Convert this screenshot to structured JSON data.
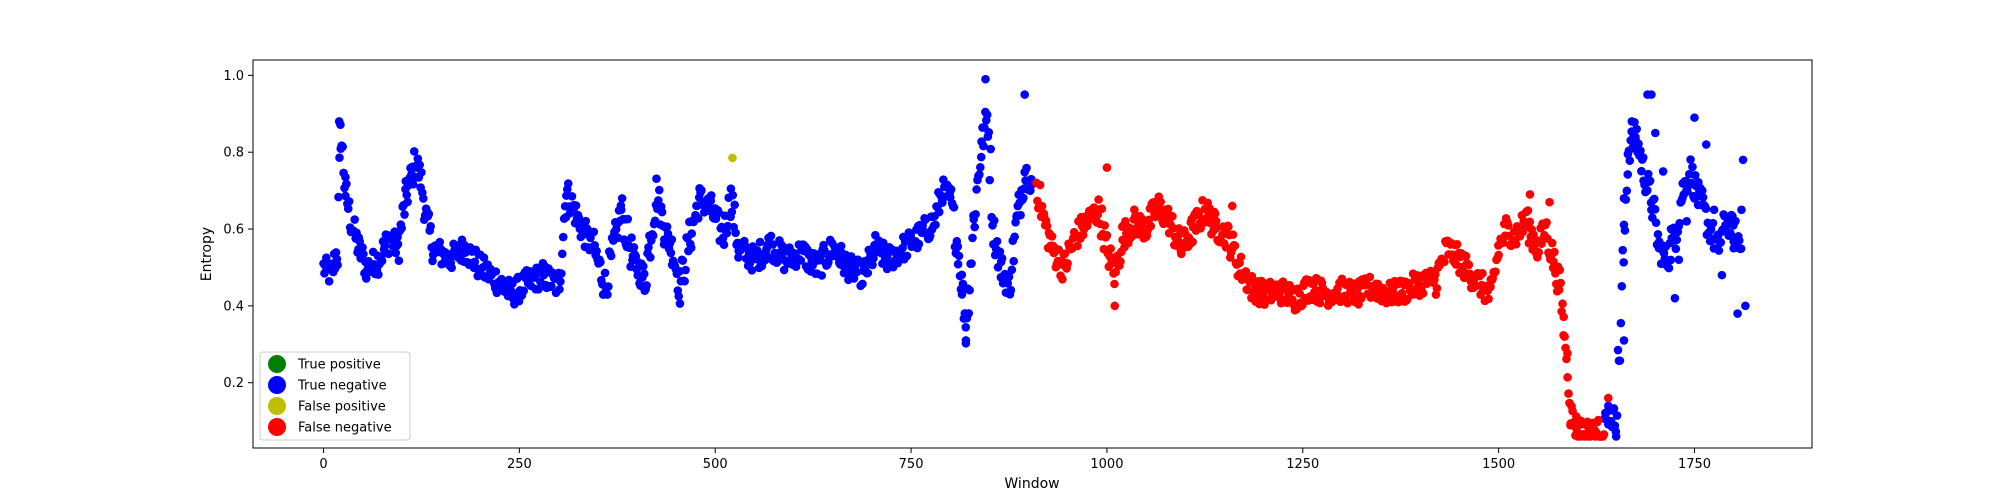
{
  "chart_data": {
    "type": "scatter",
    "title": "",
    "xlabel": "Window",
    "ylabel": "Entropy",
    "xlim": [
      -90,
      1900
    ],
    "ylim": [
      0.03,
      1.04
    ],
    "x_ticks": [
      0,
      250,
      500,
      750,
      1000,
      1250,
      1500,
      1750
    ],
    "y_ticks": [
      0.2,
      0.4,
      0.6,
      0.8,
      1.0
    ],
    "x_tick_labels": [
      "0",
      "250",
      "500",
      "750",
      "1000",
      "1250",
      "1500",
      "1750"
    ],
    "y_tick_labels": [
      "0.2",
      "0.4",
      "0.6",
      "0.8",
      "1.0"
    ],
    "grid": false,
    "legend_position": "lower-left",
    "legend": [
      {
        "label": "True positive",
        "color": "#008000"
      },
      {
        "label": "True negative",
        "color": "#0000ff"
      },
      {
        "label": "False positive",
        "color": "#bfbf00"
      },
      {
        "label": "False negative",
        "color": "#ff0000"
      }
    ],
    "series": [
      {
        "name": "True negative",
        "color": "#0000ff",
        "path": [
          [
            0,
            0.5
          ],
          [
            10,
            0.48
          ],
          [
            18,
            0.55
          ],
          [
            22,
            0.85
          ],
          [
            28,
            0.7
          ],
          [
            35,
            0.62
          ],
          [
            45,
            0.55
          ],
          [
            55,
            0.5
          ],
          [
            70,
            0.52
          ],
          [
            85,
            0.58
          ],
          [
            95,
            0.55
          ],
          [
            105,
            0.68
          ],
          [
            118,
            0.78
          ],
          [
            125,
            0.72
          ],
          [
            132,
            0.62
          ],
          [
            140,
            0.55
          ],
          [
            160,
            0.52
          ],
          [
            180,
            0.55
          ],
          [
            200,
            0.5
          ],
          [
            220,
            0.47
          ],
          [
            240,
            0.43
          ],
          [
            260,
            0.46
          ],
          [
            280,
            0.48
          ],
          [
            300,
            0.45
          ],
          [
            310,
            0.7
          ],
          [
            320,
            0.65
          ],
          [
            330,
            0.6
          ],
          [
            345,
            0.55
          ],
          [
            360,
            0.45
          ],
          [
            370,
            0.55
          ],
          [
            380,
            0.65
          ],
          [
            395,
            0.52
          ],
          [
            410,
            0.47
          ],
          [
            425,
            0.7
          ],
          [
            435,
            0.6
          ],
          [
            445,
            0.55
          ],
          [
            455,
            0.45
          ],
          [
            470,
            0.6
          ],
          [
            480,
            0.68
          ],
          [
            495,
            0.65
          ],
          [
            510,
            0.58
          ],
          [
            520,
            0.68
          ],
          [
            530,
            0.55
          ],
          [
            550,
            0.52
          ],
          [
            570,
            0.56
          ],
          [
            590,
            0.52
          ],
          [
            610,
            0.54
          ],
          [
            630,
            0.5
          ],
          [
            650,
            0.55
          ],
          [
            670,
            0.5
          ],
          [
            690,
            0.48
          ],
          [
            705,
            0.55
          ],
          [
            720,
            0.52
          ],
          [
            740,
            0.55
          ],
          [
            760,
            0.58
          ],
          [
            780,
            0.62
          ],
          [
            790,
            0.7
          ],
          [
            800,
            0.68
          ],
          [
            810,
            0.55
          ],
          [
            815,
            0.45
          ],
          [
            820,
            0.35
          ],
          [
            830,
            0.62
          ],
          [
            840,
            0.82
          ],
          [
            848,
            0.9
          ],
          [
            855,
            0.6
          ],
          [
            865,
            0.5
          ],
          [
            875,
            0.45
          ],
          [
            885,
            0.62
          ],
          [
            895,
            0.75
          ],
          [
            905,
            0.72
          ]
        ],
        "extra_points": [
          [
            20,
            0.88
          ],
          [
            845,
            0.99
          ],
          [
            895,
            0.95
          ],
          [
            820,
            0.31
          ],
          [
            1660,
            0.31
          ],
          [
            1640,
            0.14
          ],
          [
            1660,
            0.68
          ],
          [
            1670,
            0.88
          ],
          [
            1690,
            0.95
          ],
          [
            1695,
            0.95
          ],
          [
            1700,
            0.85
          ],
          [
            1710,
            0.75
          ],
          [
            1720,
            0.6
          ],
          [
            1730,
            0.52
          ],
          [
            1740,
            0.62
          ],
          [
            1750,
            0.89
          ],
          [
            1760,
            0.7
          ],
          [
            1765,
            0.82
          ],
          [
            1775,
            0.65
          ],
          [
            1785,
            0.48
          ],
          [
            1790,
            0.6
          ],
          [
            1800,
            0.55
          ],
          [
            1810,
            0.65
          ],
          [
            1812,
            0.78
          ],
          [
            1815,
            0.4
          ],
          [
            1805,
            0.38
          ],
          [
            1725,
            0.42
          ]
        ],
        "post_path": [
          [
            1635,
            0.09
          ],
          [
            1640,
            0.12
          ],
          [
            1650,
            0.1
          ],
          [
            1660,
            0.55
          ],
          [
            1665,
            0.8
          ],
          [
            1675,
            0.85
          ],
          [
            1685,
            0.75
          ],
          [
            1695,
            0.68
          ],
          [
            1705,
            0.55
          ],
          [
            1715,
            0.52
          ],
          [
            1725,
            0.58
          ],
          [
            1735,
            0.7
          ],
          [
            1745,
            0.75
          ],
          [
            1755,
            0.68
          ],
          [
            1770,
            0.6
          ],
          [
            1780,
            0.55
          ],
          [
            1790,
            0.62
          ],
          [
            1800,
            0.6
          ],
          [
            1810,
            0.55
          ]
        ]
      },
      {
        "name": "False negative",
        "color": "#ff0000",
        "path": [
          [
            910,
            0.72
          ],
          [
            920,
            0.62
          ],
          [
            930,
            0.55
          ],
          [
            945,
            0.5
          ],
          [
            960,
            0.58
          ],
          [
            975,
            0.62
          ],
          [
            990,
            0.65
          ],
          [
            1000,
            0.55
          ],
          [
            1010,
            0.48
          ],
          [
            1020,
            0.58
          ],
          [
            1035,
            0.62
          ],
          [
            1050,
            0.6
          ],
          [
            1065,
            0.66
          ],
          [
            1080,
            0.62
          ],
          [
            1095,
            0.55
          ],
          [
            1110,
            0.6
          ],
          [
            1125,
            0.65
          ],
          [
            1140,
            0.6
          ],
          [
            1155,
            0.58
          ],
          [
            1170,
            0.5
          ],
          [
            1185,
            0.45
          ],
          [
            1200,
            0.43
          ],
          [
            1220,
            0.44
          ],
          [
            1240,
            0.42
          ],
          [
            1260,
            0.45
          ],
          [
            1280,
            0.43
          ],
          [
            1300,
            0.44
          ],
          [
            1320,
            0.43
          ],
          [
            1340,
            0.45
          ],
          [
            1360,
            0.43
          ],
          [
            1380,
            0.44
          ],
          [
            1400,
            0.46
          ],
          [
            1420,
            0.47
          ],
          [
            1435,
            0.55
          ],
          [
            1450,
            0.52
          ],
          [
            1465,
            0.48
          ],
          [
            1480,
            0.45
          ],
          [
            1490,
            0.42
          ],
          [
            1500,
            0.55
          ],
          [
            1510,
            0.6
          ],
          [
            1520,
            0.58
          ],
          [
            1535,
            0.62
          ],
          [
            1550,
            0.55
          ],
          [
            1560,
            0.6
          ],
          [
            1570,
            0.52
          ],
          [
            1578,
            0.45
          ],
          [
            1583,
            0.35
          ],
          [
            1588,
            0.25
          ],
          [
            1592,
            0.12
          ],
          [
            1600,
            0.08
          ],
          [
            1620,
            0.07
          ],
          [
            1635,
            0.08
          ]
        ],
        "extra_points": [
          [
            1000,
            0.76
          ],
          [
            1010,
            0.4
          ],
          [
            1160,
            0.66
          ],
          [
            1540,
            0.69
          ],
          [
            1565,
            0.67
          ],
          [
            1640,
            0.16
          ]
        ]
      },
      {
        "name": "False positive",
        "color": "#bfbf00",
        "points": [
          [
            522,
            0.785
          ]
        ]
      }
    ]
  }
}
